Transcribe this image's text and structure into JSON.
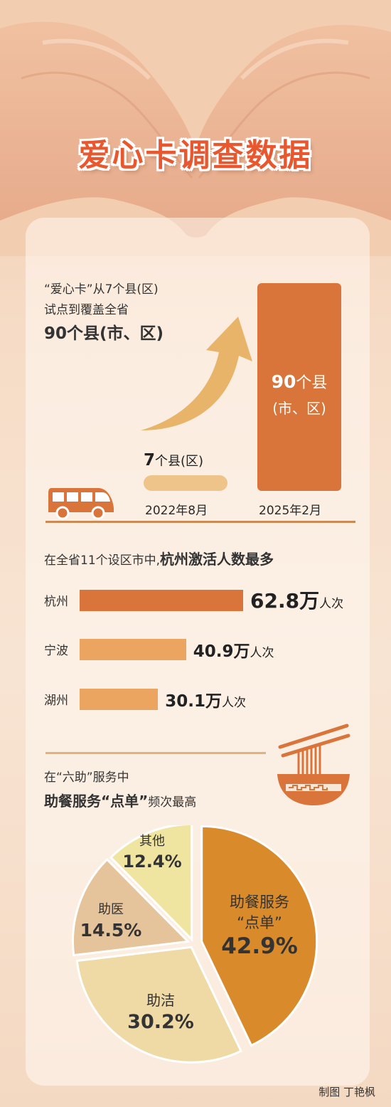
{
  "title": "爱心卡调查数据",
  "section1": {
    "line1": "“爱心卡”从7个县(区)",
    "line2": "试点到覆盖全省",
    "line3": "90个县(市、区)",
    "bar_2025_value": "90",
    "bar_2025_unit": "个县",
    "bar_2025_unit2": "(市、区)",
    "bar_2022_value": "7",
    "bar_2022_unit": "个县(区)",
    "label_2022": "2022年8月",
    "label_2025": "2025年2月",
    "counties_2022": 7,
    "counties_2025": 90,
    "colors": {
      "bar_2025": "#d9753a",
      "bar_2022": "#efc48a",
      "arrow": "#e8b46a"
    }
  },
  "section2": {
    "heading_normal": "在全省11个设区市中,",
    "heading_bold": "杭州激活人数最多",
    "unit_big": "万",
    "unit_small": "人次"
  },
  "section3": {
    "line1": "在“六助”服务中",
    "line2_bold": "助餐服务“点单”",
    "line2_normal": "频次最高"
  },
  "credit": "制图 丁艳枫",
  "chart_data": [
    {
      "type": "bar",
      "orientation": "horizontal",
      "categories": [
        "杭州",
        "宁波",
        "湖州"
      ],
      "values": [
        62.8,
        40.9,
        30.1
      ],
      "value_labels": [
        "62.8",
        "40.9",
        "30.1"
      ],
      "colors": [
        "#d9743b",
        "#eba560",
        "#eba560"
      ]
    },
    {
      "type": "pie",
      "categories": [
        "助餐服务“点单”",
        "助洁",
        "助医",
        "其他"
      ],
      "values": [
        42.9,
        30.2,
        14.5,
        12.4
      ],
      "value_labels": [
        "42.9%",
        "30.2%",
        "14.5%",
        "12.4%"
      ],
      "colors": [
        "#d98b2c",
        "#efd9a4",
        "#e6c49b",
        "#efe5a0"
      ]
    }
  ]
}
